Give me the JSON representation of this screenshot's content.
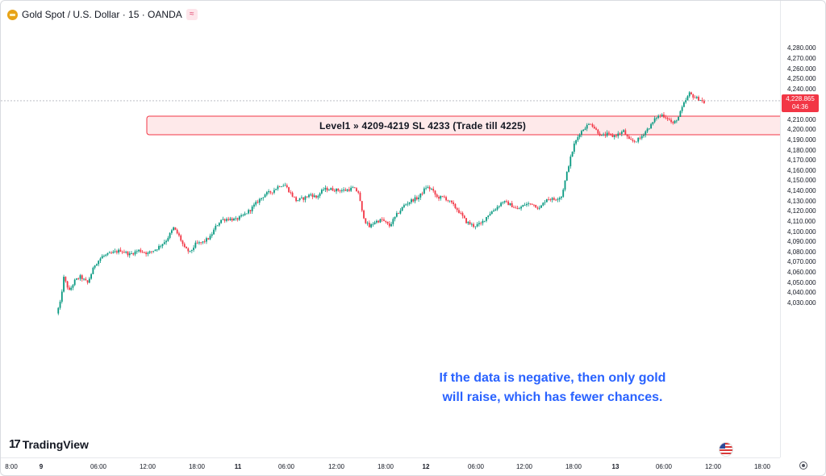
{
  "header": {
    "symbol_title": "Gold Spot / U.S. Dollar · 15 · OANDA",
    "waves_glyph": "≈"
  },
  "price_label": {
    "price": "4,228.865",
    "countdown": "04:36"
  },
  "zone": {
    "label": "Level1 » 4209-4219 SL 4233 (Trade till 4225)",
    "low": 4209,
    "high": 4219,
    "fill_color": "#fde2e3",
    "border_color": "#f23645"
  },
  "annotation": {
    "line1": "If the data is negative, then only gold",
    "line2": "will raise, which has fewer chances."
  },
  "logo": {
    "mark": "17",
    "text": "TradingView"
  },
  "colors": {
    "up": "#089981",
    "down": "#f23645",
    "annotation": "#2962ff"
  },
  "y_axis": {
    "ticks": [
      "4,280.000",
      "4,270.000",
      "4,260.000",
      "4,250.000",
      "4,240.000",
      "4,230.000",
      "4,220.000",
      "4,210.000",
      "4,200.000",
      "4,190.000",
      "4,180.000",
      "4,170.000",
      "4,160.000",
      "4,150.000",
      "4,140.000",
      "4,130.000",
      "4,120.000",
      "4,110.000",
      "4,100.000",
      "4,090.000",
      "4,080.000",
      "4,070.000",
      "4,060.000",
      "4,050.000",
      "4,040.000",
      "4,030.000"
    ],
    "values": [
      4280,
      4270,
      4260,
      4250,
      4240,
      4230,
      4220,
      4210,
      4200,
      4190,
      4180,
      4170,
      4160,
      4150,
      4140,
      4130,
      4120,
      4110,
      4100,
      4090,
      4080,
      4070,
      4060,
      4050,
      4040,
      4030
    ]
  },
  "x_axis": {
    "ticks": [
      {
        "label": "8:00",
        "bold": false
      },
      {
        "label": "9",
        "bold": true
      },
      {
        "label": "06:00",
        "bold": false
      },
      {
        "label": "12:00",
        "bold": false
      },
      {
        "label": "18:00",
        "bold": false
      },
      {
        "label": "11",
        "bold": true
      },
      {
        "label": "06:00",
        "bold": false
      },
      {
        "label": "12:00",
        "bold": false
      },
      {
        "label": "18:00",
        "bold": false
      },
      {
        "label": "12",
        "bold": true
      },
      {
        "label": "06:00",
        "bold": false
      },
      {
        "label": "12:00",
        "bold": false
      },
      {
        "label": "18:00",
        "bold": false
      },
      {
        "label": "13",
        "bold": true
      },
      {
        "label": "06:00",
        "bold": false
      },
      {
        "label": "12:00",
        "bold": false
      },
      {
        "label": "18:00",
        "bold": false
      }
    ]
  },
  "chart_data": {
    "type": "candlestick",
    "current_price": 4228.865,
    "ylim": [
      4025,
      4285
    ],
    "price_path": [
      [
        0,
        4020
      ],
      [
        2,
        4030
      ],
      [
        4,
        4055
      ],
      [
        7,
        4042
      ],
      [
        10,
        4052
      ],
      [
        13,
        4056
      ],
      [
        17,
        4050
      ],
      [
        21,
        4068
      ],
      [
        25,
        4076
      ],
      [
        30,
        4079
      ],
      [
        35,
        4082
      ],
      [
        40,
        4078
      ],
      [
        45,
        4082
      ],
      [
        50,
        4079
      ],
      [
        55,
        4084
      ],
      [
        60,
        4092
      ],
      [
        64,
        4104
      ],
      [
        67,
        4096
      ],
      [
        70,
        4084
      ],
      [
        73,
        4080
      ],
      [
        76,
        4088
      ],
      [
        80,
        4090
      ],
      [
        84,
        4095
      ],
      [
        87,
        4105
      ],
      [
        90,
        4112
      ],
      [
        94,
        4113
      ],
      [
        98,
        4112
      ],
      [
        102,
        4116
      ],
      [
        106,
        4122
      ],
      [
        110,
        4130
      ],
      [
        114,
        4137
      ],
      [
        118,
        4140
      ],
      [
        122,
        4146
      ],
      [
        125,
        4146
      ],
      [
        128,
        4138
      ],
      [
        131,
        4131
      ],
      [
        135,
        4133
      ],
      [
        139,
        4137
      ],
      [
        142,
        4134
      ],
      [
        146,
        4142
      ],
      [
        150,
        4142
      ],
      [
        154,
        4141
      ],
      [
        158,
        4141
      ],
      [
        162,
        4143
      ],
      [
        165,
        4139
      ],
      [
        167,
        4120
      ],
      [
        169,
        4110
      ],
      [
        171,
        4105
      ],
      [
        174,
        4110
      ],
      [
        178,
        4112
      ],
      [
        182,
        4106
      ],
      [
        186,
        4117
      ],
      [
        190,
        4126
      ],
      [
        194,
        4131
      ],
      [
        198,
        4134
      ],
      [
        202,
        4144
      ],
      [
        205,
        4142
      ],
      [
        208,
        4134
      ],
      [
        212,
        4134
      ],
      [
        216,
        4128
      ],
      [
        220,
        4120
      ],
      [
        224,
        4110
      ],
      [
        228,
        4106
      ],
      [
        232,
        4108
      ],
      [
        236,
        4117
      ],
      [
        240,
        4123
      ],
      [
        244,
        4130
      ],
      [
        248,
        4127
      ],
      [
        252,
        4122
      ],
      [
        256,
        4127
      ],
      [
        260,
        4128
      ],
      [
        264,
        4123
      ],
      [
        268,
        4133
      ],
      [
        272,
        4132
      ],
      [
        276,
        4135
      ],
      [
        278,
        4150
      ],
      [
        280,
        4166
      ],
      [
        283,
        4186
      ],
      [
        286,
        4197
      ],
      [
        289,
        4203
      ],
      [
        292,
        4207
      ],
      [
        295,
        4200
      ],
      [
        298,
        4194
      ],
      [
        301,
        4196
      ],
      [
        304,
        4194
      ],
      [
        307,
        4196
      ],
      [
        310,
        4199
      ],
      [
        313,
        4190
      ],
      [
        316,
        4189
      ],
      [
        319,
        4192
      ],
      [
        322,
        4199
      ],
      [
        325,
        4205
      ],
      [
        328,
        4213
      ],
      [
        331,
        4215
      ],
      [
        334,
        4212
      ],
      [
        337,
        4206
      ],
      [
        340,
        4213
      ],
      [
        343,
        4226
      ],
      [
        346,
        4236
      ],
      [
        349,
        4232
      ],
      [
        352,
        4230
      ],
      [
        354,
        4227
      ]
    ]
  }
}
